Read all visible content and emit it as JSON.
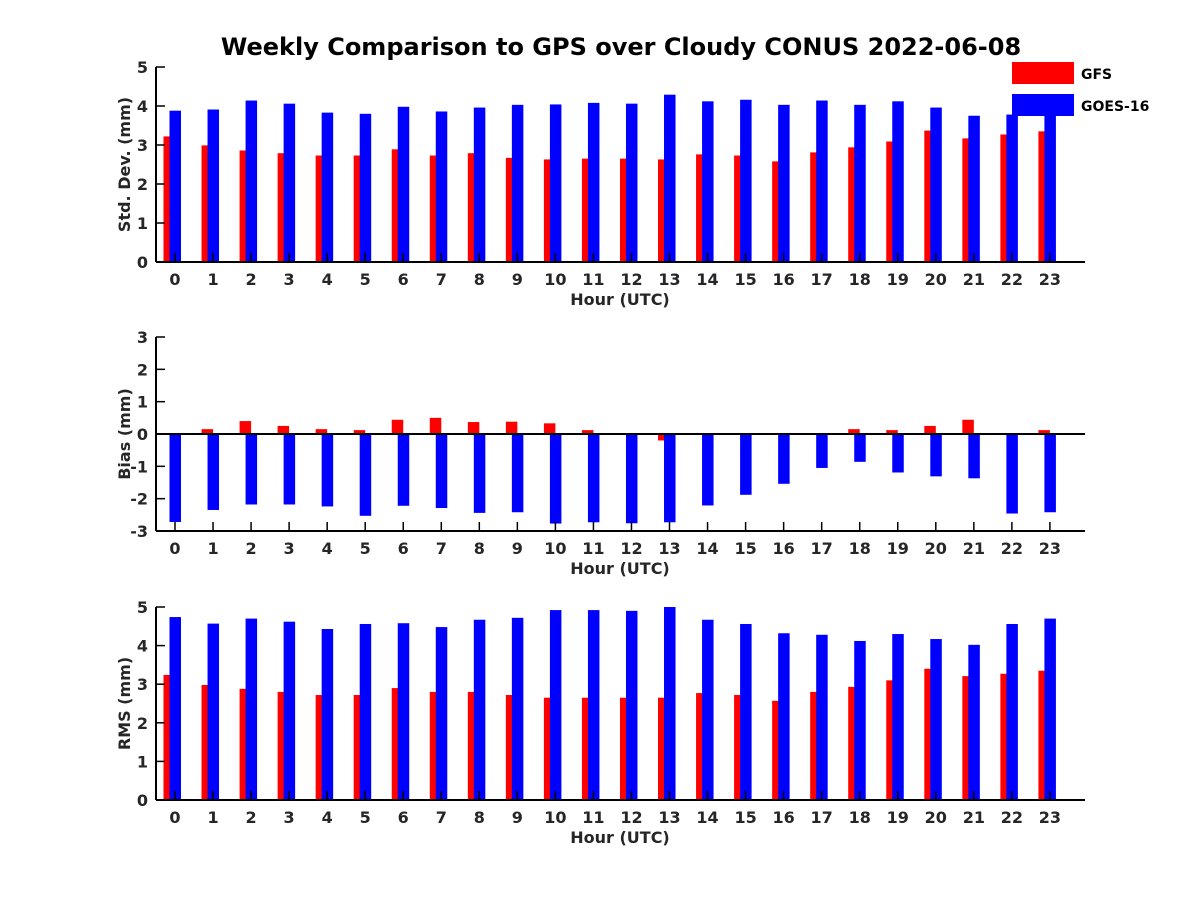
{
  "chart_data": {
    "title": "Weekly Comparison to GPS over Cloudy CONUS 2022-06-08",
    "type": "bar",
    "legend": {
      "placement": "top-right",
      "entries": [
        {
          "name": "GFS",
          "color": "#ff0000"
        },
        {
          "name": "GOES-16",
          "color": "#0000ff"
        }
      ]
    },
    "categories": [
      "0",
      "1",
      "2",
      "3",
      "4",
      "5",
      "6",
      "7",
      "8",
      "9",
      "10",
      "11",
      "12",
      "13",
      "14",
      "15",
      "16",
      "17",
      "18",
      "19",
      "20",
      "21",
      "22",
      "23"
    ],
    "panels": [
      {
        "ylabel": "Std. Dev. (mm)",
        "xlabel": "Hour (UTC)",
        "ylim": [
          0,
          5
        ],
        "yticks": [
          "0",
          "1",
          "2",
          "3",
          "4",
          "5"
        ],
        "zero_line": false,
        "series": [
          {
            "name": "GFS",
            "color": "#ff0000",
            "values": [
              3.22,
              2.99,
              2.86,
              2.79,
              2.73,
              2.73,
              2.89,
              2.73,
              2.79,
              2.67,
              2.63,
              2.65,
              2.65,
              2.63,
              2.76,
              2.73,
              2.58,
              2.81,
              2.94,
              3.09,
              3.37,
              3.17,
              3.27,
              3.35
            ]
          },
          {
            "name": "GOES-16",
            "color": "#0000ff",
            "values": [
              3.88,
              3.91,
              4.14,
              4.06,
              3.83,
              3.8,
              3.98,
              3.86,
              3.96,
              4.03,
              4.04,
              4.08,
              4.06,
              4.29,
              4.12,
              4.16,
              4.03,
              4.14,
              4.03,
              4.12,
              3.96,
              3.75,
              3.78,
              3.95
            ]
          }
        ]
      },
      {
        "ylabel": "Bias (mm)",
        "xlabel": "Hour (UTC)",
        "ylim": [
          -3,
          3
        ],
        "yticks": [
          "-3",
          "-2",
          "-1",
          "0",
          "1",
          "2",
          "3"
        ],
        "zero_line": true,
        "series": [
          {
            "name": "GFS",
            "color": "#ff0000",
            "values": [
              0.02,
              0.15,
              0.4,
              0.25,
              0.15,
              0.12,
              0.44,
              0.5,
              0.37,
              0.38,
              0.33,
              0.12,
              0.0,
              -0.2,
              0.0,
              -0.02,
              0.0,
              0.0,
              0.15,
              0.12,
              0.25,
              0.44,
              0.0,
              0.12
            ]
          },
          {
            "name": "GOES-16",
            "color": "#0000ff",
            "values": [
              -2.72,
              -2.35,
              -2.18,
              -2.18,
              -2.24,
              -2.53,
              -2.22,
              -2.29,
              -2.44,
              -2.42,
              -2.77,
              -2.73,
              -2.76,
              -2.73,
              -2.21,
              -1.88,
              -1.54,
              -1.05,
              -0.86,
              -1.19,
              -1.31,
              -1.37,
              -2.46,
              -2.42
            ]
          }
        ]
      },
      {
        "ylabel": "RMS (mm)",
        "xlabel": "Hour (UTC)",
        "ylim": [
          0,
          5
        ],
        "yticks": [
          "0",
          "1",
          "2",
          "3",
          "4",
          "5"
        ],
        "zero_line": false,
        "series": [
          {
            "name": "GFS",
            "color": "#ff0000",
            "values": [
              3.24,
              2.98,
              2.88,
              2.8,
              2.72,
              2.72,
              2.9,
              2.8,
              2.8,
              2.72,
              2.65,
              2.65,
              2.65,
              2.65,
              2.77,
              2.72,
              2.57,
              2.8,
              2.93,
              3.1,
              3.4,
              3.21,
              3.27,
              3.35
            ]
          },
          {
            "name": "GOES-16",
            "color": "#0000ff",
            "values": [
              4.74,
              4.57,
              4.7,
              4.62,
              4.43,
              4.56,
              4.58,
              4.48,
              4.67,
              4.72,
              4.92,
              4.92,
              4.9,
              5.0,
              4.67,
              4.56,
              4.32,
              4.28,
              4.12,
              4.3,
              4.17,
              4.02,
              4.56,
              4.7
            ]
          }
        ]
      }
    ]
  }
}
